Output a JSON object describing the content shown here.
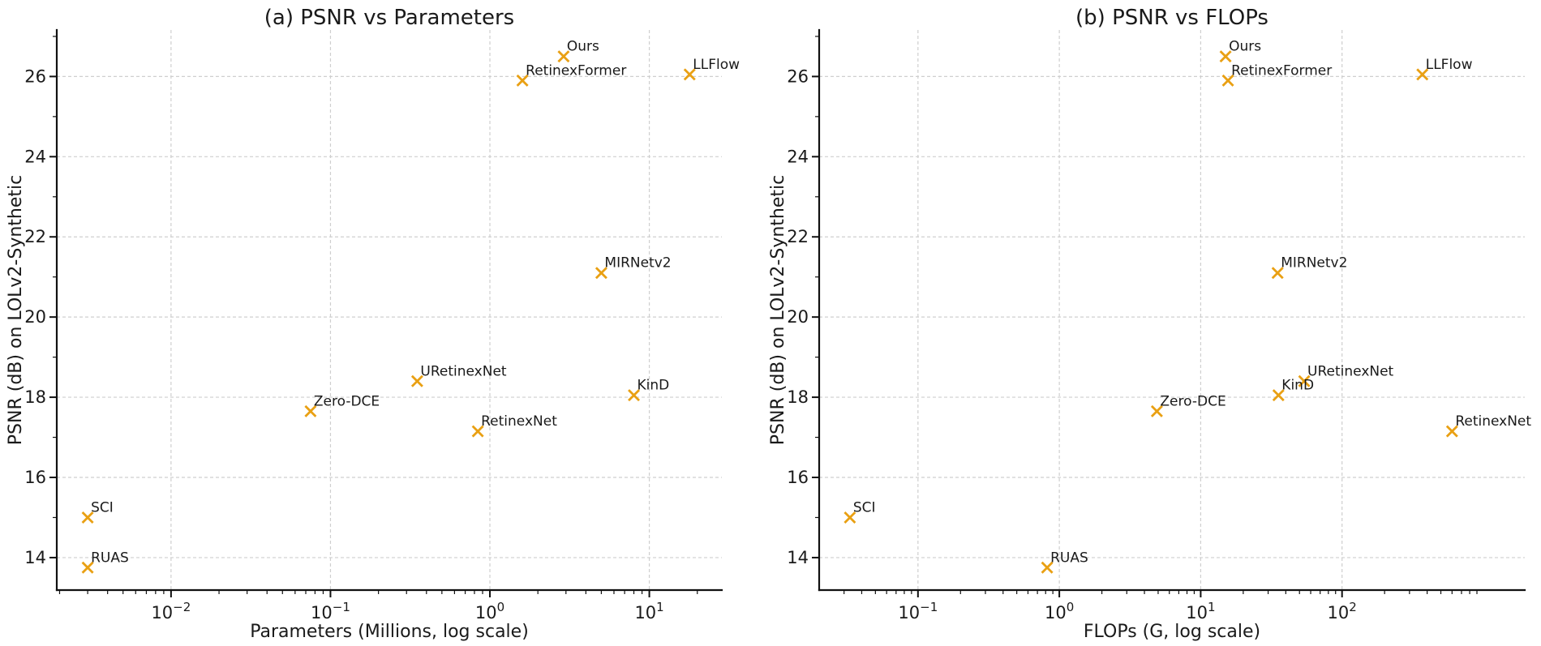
{
  "figure": {
    "background": "#ffffff",
    "text_color": "#1a1a1a",
    "grid_color": "#cfcfcf",
    "spine_color": "#111111",
    "marker_color": "#E9A013",
    "marker_shape": "x"
  },
  "chart_data": [
    {
      "type": "scatter",
      "panel": "a",
      "title": "(a) PSNR vs Parameters",
      "xlabel": "Parameters (Millions, log scale)",
      "ylabel": "PSNR (dB) on LOLv2-Synthetic",
      "x_scale": "log",
      "y_scale": "linear",
      "xlim": [
        0.00192,
        28.5
      ],
      "ylim": [
        13.19,
        27.16
      ],
      "x_ticks": [
        0.01,
        0.1,
        1,
        10
      ],
      "y_ticks": [
        14,
        16,
        18,
        20,
        22,
        24,
        26
      ],
      "grid": true,
      "legend": "none",
      "points": [
        {
          "label": "Ours",
          "x": 2.9,
          "y": 26.5
        },
        {
          "label": "RetinexFormer",
          "x": 1.6,
          "y": 25.9
        },
        {
          "label": "LLFlow",
          "x": 17.9,
          "y": 26.05
        },
        {
          "label": "MIRNetv2",
          "x": 5.0,
          "y": 21.1
        },
        {
          "label": "URetinexNet",
          "x": 0.35,
          "y": 18.4
        },
        {
          "label": "KinD",
          "x": 8.0,
          "y": 18.05
        },
        {
          "label": "Zero-DCE",
          "x": 0.075,
          "y": 17.65
        },
        {
          "label": "RetinexNet",
          "x": 0.84,
          "y": 17.15
        },
        {
          "label": "SCI",
          "x": 0.003,
          "y": 15.0
        },
        {
          "label": "RUAS",
          "x": 0.003,
          "y": 13.75
        }
      ]
    },
    {
      "type": "scatter",
      "panel": "b",
      "title": "(b) PSNR vs FLOPs",
      "xlabel": "FLOPs (G, log scale)",
      "ylabel": "PSNR (dB) on LOLv2-Synthetic",
      "x_scale": "log",
      "y_scale": "linear",
      "xlim": [
        0.02,
        1962
      ],
      "ylim": [
        13.19,
        27.16
      ],
      "x_ticks": [
        0.1,
        1,
        10,
        100
      ],
      "y_ticks": [
        14,
        16,
        18,
        20,
        22,
        24,
        26
      ],
      "grid": true,
      "legend": "none",
      "points": [
        {
          "label": "Ours",
          "x": 15,
          "y": 26.5
        },
        {
          "label": "RetinexFormer",
          "x": 15.6,
          "y": 25.9
        },
        {
          "label": "LLFlow",
          "x": 370,
          "y": 26.05
        },
        {
          "label": "MIRNetv2",
          "x": 35,
          "y": 21.1
        },
        {
          "label": "URetinexNet",
          "x": 54,
          "y": 18.4
        },
        {
          "label": "KinD",
          "x": 35.5,
          "y": 18.05
        },
        {
          "label": "Zero-DCE",
          "x": 4.9,
          "y": 17.65
        },
        {
          "label": "RetinexNet",
          "x": 600,
          "y": 17.15
        },
        {
          "label": "SCI",
          "x": 0.033,
          "y": 15.0
        },
        {
          "label": "RUAS",
          "x": 0.82,
          "y": 13.75
        }
      ]
    }
  ]
}
